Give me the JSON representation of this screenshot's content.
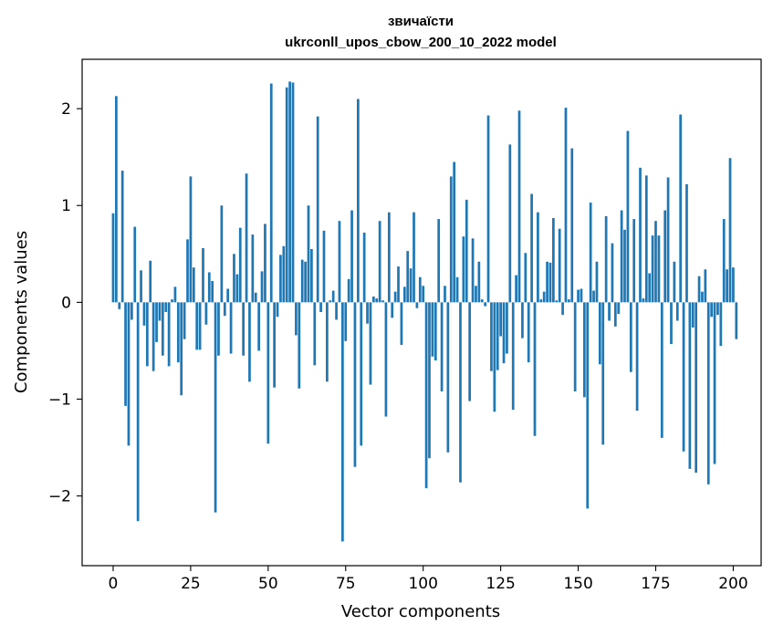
{
  "chart_data": {
    "type": "bar",
    "title": "звичаїсти",
    "subtitle": "ukrconll_upos_cbow_200_10_2022 model",
    "xlabel": "Vector components",
    "ylabel": "Components values",
    "xlim": [
      -10,
      209
    ],
    "ylim": [
      -2.72,
      2.51
    ],
    "xticks": [
      0,
      25,
      50,
      75,
      100,
      125,
      150,
      175,
      200
    ],
    "yticks": [
      -2,
      -1,
      0,
      1,
      2
    ],
    "ytick_labels": [
      "−2",
      "−1",
      "0",
      "1",
      "2"
    ],
    "grid": false,
    "bar_color": "#1f77b4",
    "values": [
      0.92,
      2.13,
      -0.07,
      1.36,
      -1.07,
      -1.48,
      -0.18,
      0.78,
      -2.26,
      0.33,
      -0.24,
      -0.66,
      0.43,
      -0.71,
      -0.41,
      -0.19,
      -0.55,
      -0.1,
      -0.66,
      0.03,
      0.16,
      -0.62,
      -0.96,
      -0.38,
      0.65,
      1.3,
      0.36,
      -0.49,
      -0.49,
      0.56,
      -0.23,
      0.31,
      0.22,
      -2.17,
      -0.55,
      1.0,
      -0.14,
      0.14,
      -0.53,
      0.5,
      0.29,
      0.77,
      -0.55,
      1.33,
      -0.82,
      0.7,
      0.1,
      -0.5,
      0.32,
      0.81,
      -1.46,
      2.26,
      -0.88,
      -0.15,
      0.49,
      0.58,
      2.22,
      2.28,
      2.27,
      -0.34,
      -0.89,
      0.44,
      0.42,
      1.0,
      0.55,
      -0.65,
      1.92,
      -0.1,
      0.74,
      -0.82,
      0.02,
      0.12,
      -0.18,
      0.84,
      -2.47,
      -0.4,
      0.24,
      0.95,
      -1.7,
      2.1,
      -1.48,
      0.72,
      -0.22,
      -0.85,
      0.06,
      0.04,
      0.84,
      0.02,
      -1.18,
      0.93,
      -0.16,
      0.11,
      0.37,
      -0.44,
      0.16,
      0.53,
      0.35,
      0.93,
      -0.06,
      0.26,
      0.17,
      -1.92,
      -1.61,
      -0.56,
      -0.6,
      0.86,
      -0.92,
      0.17,
      -1.55,
      1.3,
      1.45,
      0.26,
      -1.86,
      0.68,
      1.06,
      -1.02,
      0.66,
      0.17,
      0.42,
      0.03,
      -0.04,
      1.93,
      -0.71,
      -1.13,
      -0.7,
      -0.35,
      -0.63,
      -0.53,
      1.63,
      -1.11,
      0.28,
      1.98,
      -0.37,
      0.51,
      -0.62,
      1.12,
      -1.38,
      0.93,
      0.03,
      0.11,
      0.42,
      0.41,
      0.87,
      0.02,
      0.76,
      -0.13,
      2.01,
      0.03,
      1.59,
      -0.92,
      0.13,
      0.14,
      -0.98,
      -2.13,
      1.03,
      0.12,
      0.42,
      -0.64,
      -1.47,
      0.89,
      -0.19,
      0.61,
      -0.25,
      -0.12,
      0.95,
      0.75,
      1.77,
      -0.72,
      0.86,
      -1.12,
      1.39,
      0.04,
      1.31,
      0.3,
      0.69,
      0.84,
      0.69,
      -1.4,
      0.95,
      1.29,
      -0.43,
      0.42,
      -0.19,
      1.94,
      -1.54,
      1.22,
      -1.72,
      -0.26,
      -1.76,
      0.27,
      0.11,
      0.34,
      -1.88,
      -0.15,
      -1.67,
      -0.13,
      -0.45,
      0.86,
      0.34,
      1.49,
      0.36,
      -0.38
    ]
  }
}
